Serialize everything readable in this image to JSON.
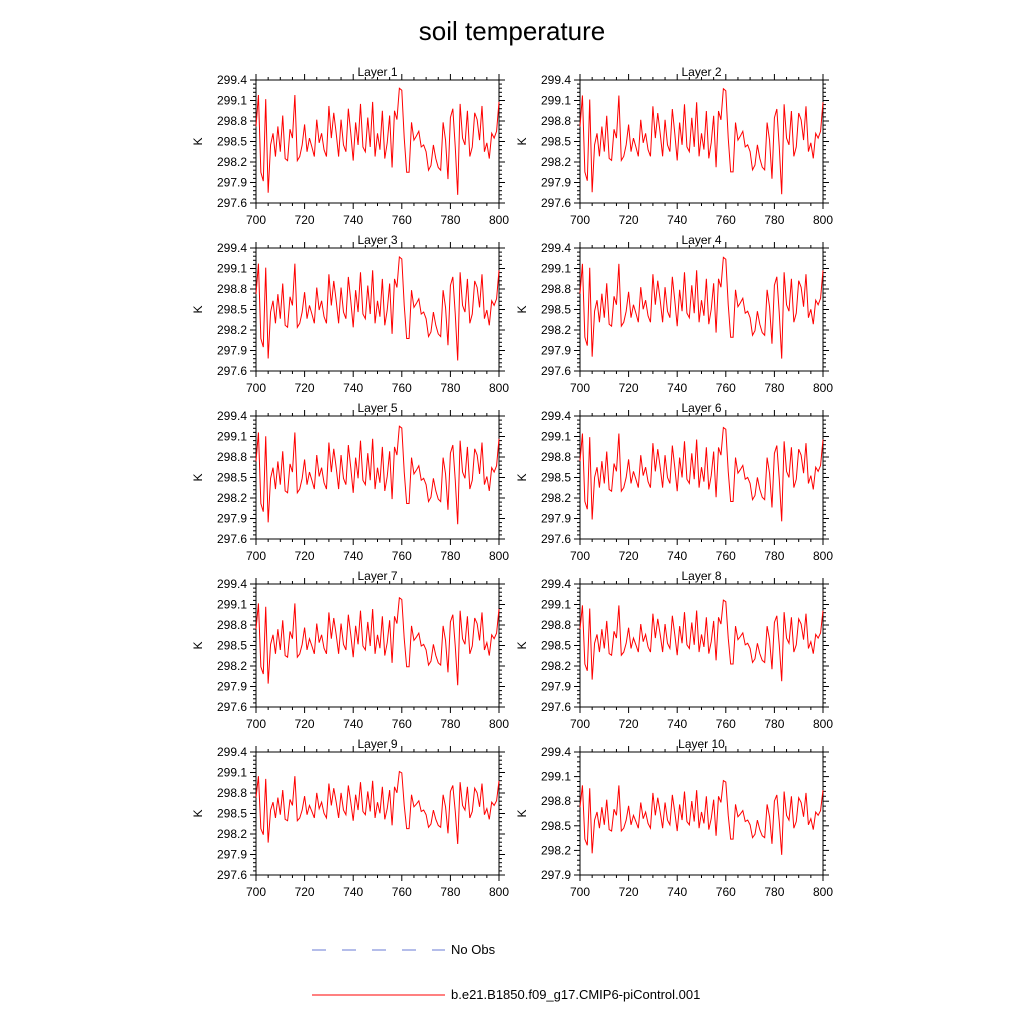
{
  "title": "soil temperature",
  "chart_data": {
    "type": "line",
    "title": "soil temperature",
    "ylabel": "K",
    "xlim": [
      700,
      800
    ],
    "xticks": [
      700,
      720,
      740,
      760,
      780,
      800
    ],
    "series_colors": {
      "model": "#ff0000",
      "obs": "#6a7bd6"
    },
    "panels": [
      {
        "title": "Layer 1",
        "ylim": [
          297.6,
          299.4
        ],
        "yticks": [
          "297.6",
          "297.9",
          "298.2",
          "298.5",
          "298.8",
          "299.1",
          "299.4"
        ],
        "offset": 0.0,
        "amp": 1.0
      },
      {
        "title": "Layer 2",
        "ylim": [
          297.6,
          299.4
        ],
        "yticks": [
          "297.6",
          "297.9",
          "298.2",
          "298.5",
          "298.8",
          "299.1",
          "299.4"
        ],
        "offset": 0.0,
        "amp": 0.99
      },
      {
        "title": "Layer 3",
        "ylim": [
          297.6,
          299.4
        ],
        "yticks": [
          "297.6",
          "297.9",
          "298.2",
          "298.5",
          "298.8",
          "299.1",
          "299.4"
        ],
        "offset": 0.01,
        "amp": 0.97
      },
      {
        "title": "Layer 4",
        "ylim": [
          297.6,
          299.4
        ],
        "yticks": [
          "297.6",
          "297.9",
          "298.2",
          "298.5",
          "298.8",
          "299.1",
          "299.4"
        ],
        "offset": 0.02,
        "amp": 0.95
      },
      {
        "title": "Layer 5",
        "ylim": [
          297.6,
          299.4
        ],
        "yticks": [
          "297.6",
          "297.9",
          "298.2",
          "298.5",
          "298.8",
          "299.1",
          "299.4"
        ],
        "offset": 0.03,
        "amp": 0.92
      },
      {
        "title": "Layer 6",
        "ylim": [
          297.6,
          299.4
        ],
        "yticks": [
          "297.6",
          "297.9",
          "298.2",
          "298.5",
          "298.8",
          "299.1",
          "299.4"
        ],
        "offset": 0.04,
        "amp": 0.88
      },
      {
        "title": "Layer 7",
        "ylim": [
          297.6,
          299.4
        ],
        "yticks": [
          "297.6",
          "297.9",
          "298.2",
          "298.5",
          "298.8",
          "299.1",
          "299.4"
        ],
        "offset": 0.05,
        "amp": 0.82
      },
      {
        "title": "Layer 8",
        "ylim": [
          297.6,
          299.4
        ],
        "yticks": [
          "297.6",
          "297.9",
          "298.2",
          "298.5",
          "298.8",
          "299.1",
          "299.4"
        ],
        "offset": 0.06,
        "amp": 0.76
      },
      {
        "title": "Layer 9",
        "ylim": [
          297.6,
          299.4
        ],
        "yticks": [
          "297.6",
          "297.9",
          "298.2",
          "298.5",
          "298.8",
          "299.1",
          "299.4"
        ],
        "offset": 0.07,
        "amp": 0.68
      },
      {
        "title": "Layer 10",
        "ylim": [
          297.9,
          299.4
        ],
        "yticks": [
          "297.9",
          "298.2",
          "298.5",
          "298.8",
          "299.1",
          "299.4"
        ],
        "offset": 0.08,
        "amp": 0.58
      }
    ],
    "base_series": {
      "x_start": 700,
      "x_step": 1,
      "values": [
        298.72,
        299.18,
        298.05,
        297.92,
        299.12,
        297.75,
        298.45,
        298.62,
        298.28,
        298.72,
        298.35,
        298.88,
        298.25,
        298.22,
        298.68,
        298.55,
        299.18,
        298.22,
        298.28,
        298.45,
        298.75,
        298.35,
        298.55,
        298.42,
        298.28,
        298.82,
        298.48,
        298.62,
        298.38,
        298.28,
        299.02,
        298.55,
        298.92,
        298.62,
        298.28,
        298.82,
        298.45,
        298.35,
        298.98,
        298.62,
        298.22,
        298.78,
        298.45,
        299.05,
        298.42,
        298.35,
        298.85,
        298.42,
        299.08,
        298.28,
        298.62,
        298.38,
        298.95,
        298.25,
        298.48,
        298.88,
        298.12,
        298.95,
        298.82,
        299.28,
        299.25,
        298.55,
        298.05,
        298.05,
        298.78,
        298.52,
        298.58,
        298.65,
        298.42,
        298.45,
        298.35,
        298.08,
        298.15,
        298.45,
        298.25,
        298.12,
        298.08,
        298.78,
        298.52,
        297.95,
        298.85,
        298.98,
        298.42,
        297.72,
        299.05,
        298.55,
        298.45,
        298.95,
        298.28,
        298.42,
        298.92,
        298.82,
        298.52,
        299.02,
        298.35,
        298.48,
        298.25,
        298.62,
        298.55,
        298.65,
        299.08
      ]
    }
  },
  "legend": [
    {
      "label": "No Obs",
      "style": "dashed",
      "color": "#6a7bd6"
    },
    {
      "label": "b.e21.B1850.f09_g17.CMIP6-piControl.001",
      "style": "solid",
      "color": "#ff0000"
    }
  ]
}
